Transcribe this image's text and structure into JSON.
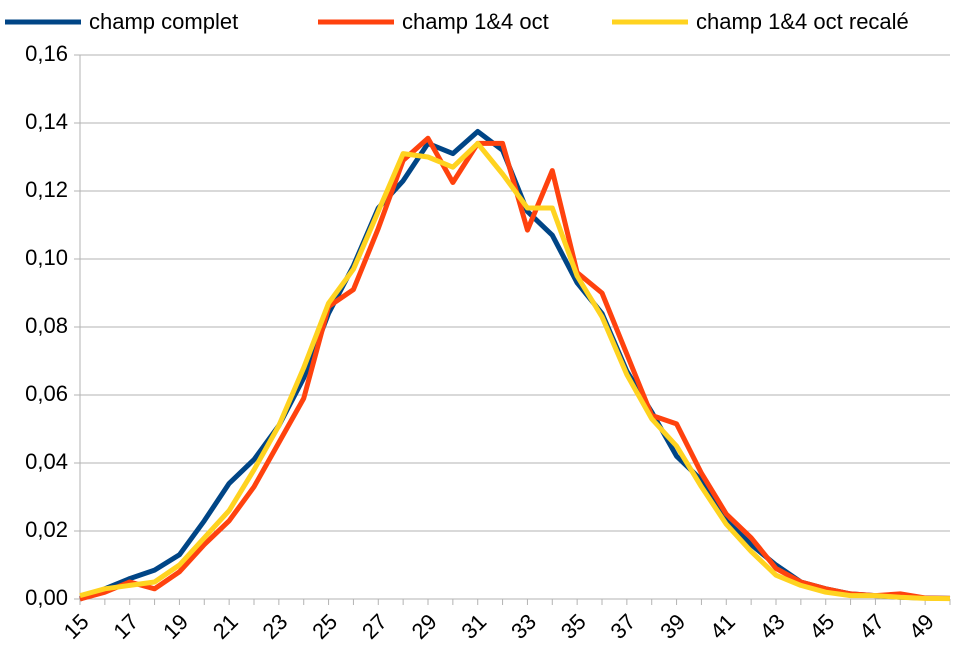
{
  "chart_data": {
    "type": "line",
    "categories": [
      "15",
      null,
      "17",
      null,
      "19",
      null,
      "21",
      null,
      "23",
      null,
      "25",
      null,
      "27",
      null,
      "29",
      null,
      "31",
      null,
      "33",
      null,
      "35",
      null,
      "37",
      null,
      "39",
      null,
      "41",
      null,
      "43",
      null,
      "45",
      null,
      "47",
      null,
      "49",
      null
    ],
    "series": [
      {
        "name": "champ complet",
        "color": "#004586",
        "values": [
          0.0,
          0.003,
          0.006,
          0.0085,
          0.013,
          0.023,
          0.034,
          0.041,
          0.051,
          0.065,
          0.084,
          0.098,
          0.115,
          0.123,
          0.134,
          0.131,
          0.1375,
          0.132,
          0.114,
          0.107,
          0.093,
          0.084,
          0.067,
          0.055,
          0.042,
          0.035,
          0.023,
          0.016,
          0.01,
          0.005,
          0.003,
          0.0015,
          0.001,
          0.0005,
          0.0003,
          0.0002
        ]
      },
      {
        "name": "champ 1&4 oct",
        "color": "#ff420e",
        "values": [
          0.0,
          0.002,
          0.005,
          0.003,
          0.008,
          0.016,
          0.023,
          0.033,
          0.046,
          0.059,
          0.086,
          0.091,
          0.109,
          0.129,
          0.1355,
          0.1225,
          0.134,
          0.134,
          0.1085,
          0.126,
          0.096,
          0.09,
          0.072,
          0.054,
          0.0515,
          0.037,
          0.025,
          0.018,
          0.009,
          0.005,
          0.003,
          0.0015,
          0.001,
          0.0015,
          0.0003,
          0.0002
        ]
      },
      {
        "name": "champ 1&4 oct recalé",
        "color": "#ffd320",
        "values": [
          0.001,
          0.003,
          0.004,
          0.005,
          0.01,
          0.018,
          0.026,
          0.038,
          0.051,
          0.068,
          0.087,
          0.097,
          0.114,
          0.131,
          0.13,
          0.127,
          0.134,
          0.125,
          0.115,
          0.115,
          0.095,
          0.083,
          0.066,
          0.053,
          0.045,
          0.033,
          0.022,
          0.014,
          0.007,
          0.004,
          0.002,
          0.001,
          0.001,
          0.0005,
          0.0002,
          0.0001
        ]
      }
    ],
    "ylim": [
      0,
      0.16
    ],
    "yticks": [
      {
        "value": 0,
        "label": "0,00"
      },
      {
        "value": 0.02,
        "label": "0,02"
      },
      {
        "value": 0.04,
        "label": "0,04"
      },
      {
        "value": 0.06,
        "label": "0,06"
      },
      {
        "value": 0.08,
        "label": "0,08"
      },
      {
        "value": 0.1,
        "label": "0,10"
      },
      {
        "value": 0.12,
        "label": "0,12"
      },
      {
        "value": 0.14,
        "label": "0,14"
      },
      {
        "value": 0.16,
        "label": "0,16"
      }
    ],
    "grid": true,
    "legend": "top"
  }
}
